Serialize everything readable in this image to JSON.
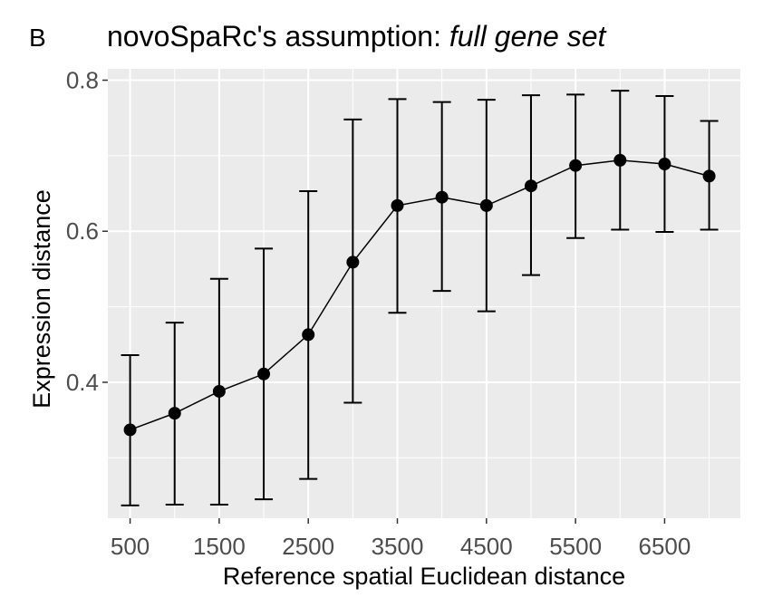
{
  "panel_label": "B",
  "title": {
    "prefix": "novoSpaRc's assumption: ",
    "emphasis": "full gene set"
  },
  "colors": {
    "panel_background": "#ebebeb",
    "grid": "#ffffff",
    "line": "#000000",
    "points": "#000000",
    "tick_text": "#4d4d4d",
    "axis_title_text": "#000000"
  },
  "chart_data": {
    "type": "line",
    "title": "novoSpaRc's assumption: full gene set",
    "xlabel": "Reference spatial Euclidean distance",
    "ylabel": "Expression distance",
    "x": [
      500,
      1000,
      1500,
      2000,
      2500,
      3000,
      3500,
      4000,
      4500,
      5000,
      5500,
      6000,
      6500,
      7000
    ],
    "xlim": [
      250,
      7350
    ],
    "ylim": [
      0.22,
      0.815
    ],
    "x_ticks": [
      500,
      1500,
      2500,
      3500,
      4500,
      5500,
      6500
    ],
    "x_tick_labels": [
      "500",
      "1500",
      "2500",
      "3500",
      "4500",
      "5500",
      "6500"
    ],
    "y_ticks": [
      0.4,
      0.6,
      0.8
    ],
    "y_tick_labels": [
      "0.4",
      "0.6",
      "0.8"
    ],
    "y_minor_gridlines": [
      0.3,
      0.5,
      0.7
    ],
    "grid": true,
    "legend": "none",
    "series": [
      {
        "values": [
          0.337,
          0.359,
          0.388,
          0.411,
          0.463,
          0.559,
          0.634,
          0.645,
          0.634,
          0.66,
          0.687,
          0.694,
          0.689,
          0.673
        ],
        "error_low": [
          0.237,
          0.238,
          0.238,
          0.245,
          0.272,
          0.373,
          0.492,
          0.521,
          0.494,
          0.542,
          0.591,
          0.602,
          0.599,
          0.602
        ],
        "error_high": [
          0.436,
          0.479,
          0.537,
          0.577,
          0.653,
          0.748,
          0.775,
          0.771,
          0.774,
          0.78,
          0.781,
          0.786,
          0.779,
          0.746
        ]
      }
    ]
  }
}
